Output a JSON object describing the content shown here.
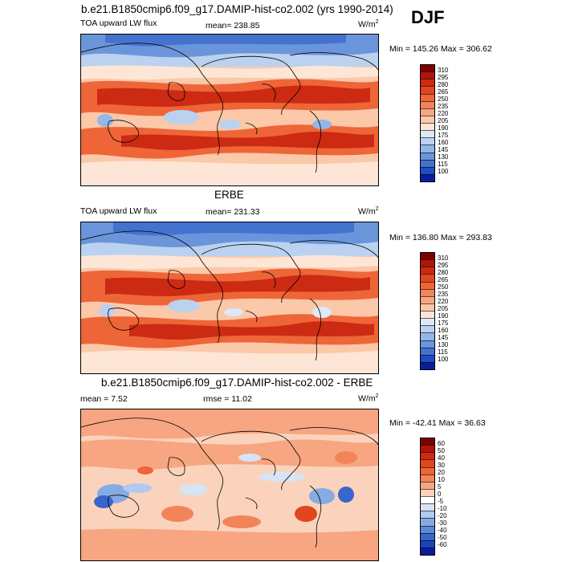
{
  "page": {
    "title": "b.e21.B1850cmip6.f09_g17.DAMIP-hist-co2.002 (yrs 1990-2014)",
    "season": "DJF"
  },
  "panels": [
    {
      "id": "model",
      "variable": "TOA upward LW flux",
      "stat": "mean= 238.85",
      "units": "W/m",
      "units_exp": "2",
      "minmax": "Min = 145.26 Max = 306.62",
      "colorbar_ticks": [
        "310",
        "295",
        "280",
        "265",
        "250",
        "235",
        "220",
        "205",
        "190",
        "175",
        "160",
        "145",
        "130",
        "115",
        "100"
      ],
      "colorbar_colors": [
        "#7f0000",
        "#b0150a",
        "#cc2a12",
        "#e2461f",
        "#ee6538",
        "#f3845a",
        "#f7a681",
        "#fbc8a9",
        "#fde6d6",
        "#dde9f6",
        "#bad2ef",
        "#93b6e6",
        "#6b95db",
        "#4472cf",
        "#1f4dc3",
        "#0a1e9c"
      ]
    },
    {
      "id": "obs",
      "heading": "ERBE",
      "variable": "TOA upward LW flux",
      "stat": "mean= 231.33",
      "units": "W/m",
      "units_exp": "2",
      "minmax": "Min = 136.80 Max = 293.83",
      "colorbar_ticks": [
        "310",
        "295",
        "280",
        "265",
        "250",
        "235",
        "220",
        "205",
        "190",
        "175",
        "160",
        "145",
        "130",
        "115",
        "100"
      ],
      "colorbar_colors": [
        "#7f0000",
        "#b0150a",
        "#cc2a12",
        "#e2461f",
        "#ee6538",
        "#f3845a",
        "#f7a681",
        "#fbc8a9",
        "#fde6d6",
        "#dde9f6",
        "#bad2ef",
        "#93b6e6",
        "#6b95db",
        "#4472cf",
        "#1f4dc3",
        "#0a1e9c"
      ]
    },
    {
      "id": "diff",
      "heading": "b.e21.B1850cmip6.f09_g17.DAMIP-hist-co2.002 - ERBE",
      "stat_left": "mean =  7.52",
      "stat": "rmse =  11.02",
      "units": "W/m",
      "units_exp": "2",
      "minmax": "Min = -42.41 Max =  36.63",
      "colorbar_ticks": [
        "60",
        "50",
        "40",
        "30",
        "20",
        "10",
        "5",
        "0",
        "-5",
        "-10",
        "-20",
        "-30",
        "-40",
        "-50",
        "-60"
      ],
      "colorbar_colors": [
        "#7f0000",
        "#b0150a",
        "#cc2a12",
        "#e2461f",
        "#ee6538",
        "#f3845a",
        "#f7a681",
        "#fbd3bd",
        "#ffffff",
        "#d6e4f5",
        "#b0cbee",
        "#86abe4",
        "#5d89d8",
        "#3866cb",
        "#1c44b8",
        "#0a1e9c"
      ]
    }
  ],
  "colors": {
    "land_outline": "#000000",
    "ocean_base_warm": "#f7a681",
    "cold_blue": "#4472cf"
  }
}
